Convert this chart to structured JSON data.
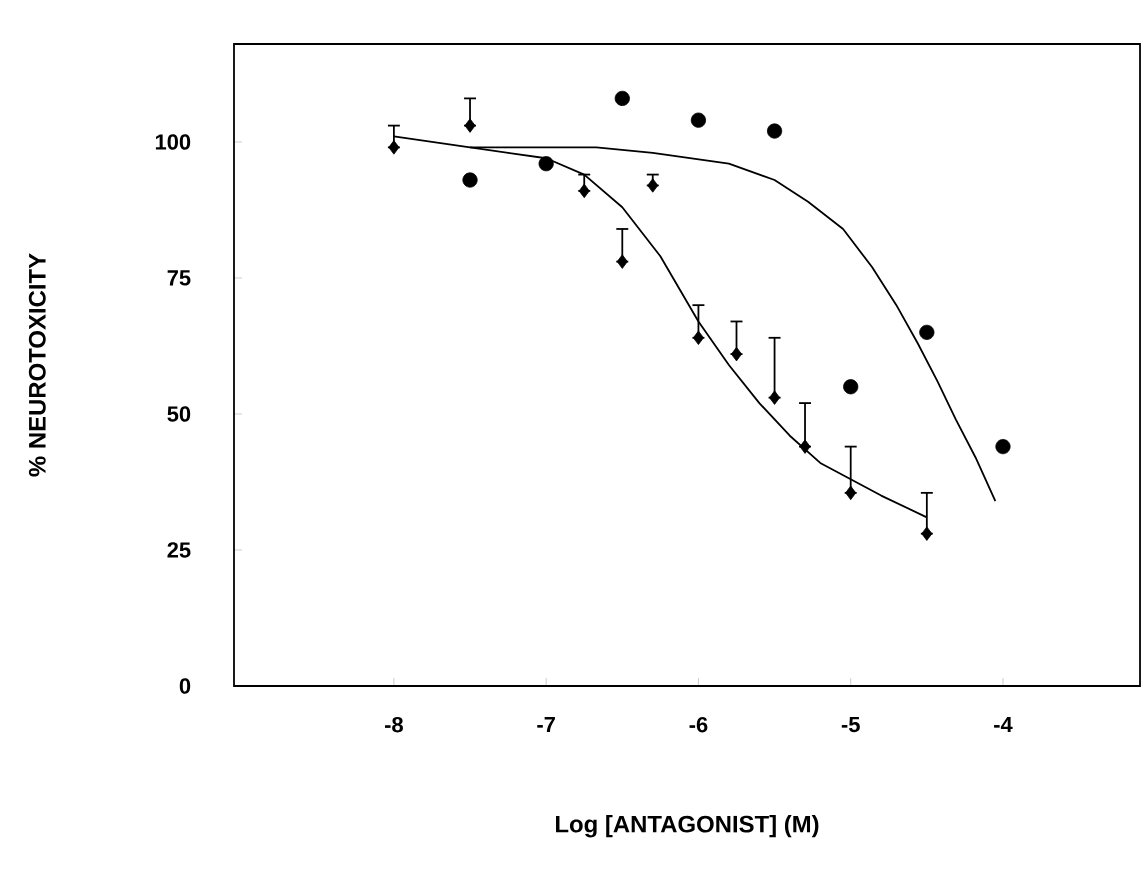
{
  "chart_data": {
    "type": "scatter",
    "xlabel": "Log [ANTAGONIST] (M)",
    "ylabel": "% NEUROTOXICITY",
    "xlim": [
      -9.05,
      -3.1
    ],
    "ylim": [
      0,
      118
    ],
    "xticks": [
      -8,
      -7,
      -6,
      -5,
      -4
    ],
    "yticks": [
      0,
      25,
      50,
      75,
      100
    ],
    "grid": false,
    "series": [
      {
        "marker": "circle",
        "color": "#000000",
        "x": [
          -7.5,
          -7,
          -6.5,
          -6,
          -5.5,
          -5,
          -4.5,
          -4
        ],
        "values": [
          93,
          96,
          108,
          104,
          102,
          55,
          65,
          44
        ]
      },
      {
        "marker": "diamond",
        "color": "#000000",
        "x": [
          -8,
          -7.5,
          -7,
          -6.75,
          -6.5,
          -6.3,
          -6,
          -5.75,
          -5.5,
          -5.3,
          -5,
          -4.5
        ],
        "values": [
          99,
          103,
          null,
          91,
          78,
          92,
          64,
          61,
          53,
          44,
          35.5,
          28
        ],
        "errors": [
          [
            99,
            103
          ],
          [
            103,
            108
          ],
          null,
          [
            91,
            94
          ],
          [
            78,
            84
          ],
          [
            92,
            94
          ],
          [
            64,
            70
          ],
          [
            61,
            67
          ],
          [
            53,
            64
          ],
          [
            44,
            52
          ],
          [
            35.5,
            44
          ],
          [
            28,
            35.5
          ]
        ]
      },
      {
        "type": "line",
        "marker": "none",
        "line_style": "solid",
        "color": "#000000",
        "x": [
          -8,
          -7.5,
          -7,
          -6.75,
          -6.5,
          -6.25,
          -6,
          -5.8,
          -5.6,
          -5.4,
          -5.2,
          -5,
          -4.8,
          -4.5
        ],
        "values": [
          101,
          99,
          97,
          94,
          88,
          79,
          67,
          59,
          52,
          46,
          41,
          38,
          35,
          31
        ]
      },
      {
        "type": "line",
        "marker": "none",
        "line_style": "solid",
        "color": "#000000",
        "x": [
          -7.5,
          -7,
          -6.67,
          -6.3,
          -5.8,
          -5.5,
          -5.28,
          -5.05,
          -4.86,
          -4.7,
          -4.56,
          -4.43,
          -4.31,
          -4.18,
          -4.05
        ],
        "values": [
          99,
          99,
          99,
          98,
          96,
          93,
          89,
          84,
          77,
          70,
          63,
          56,
          49,
          42,
          34
        ]
      }
    ]
  }
}
